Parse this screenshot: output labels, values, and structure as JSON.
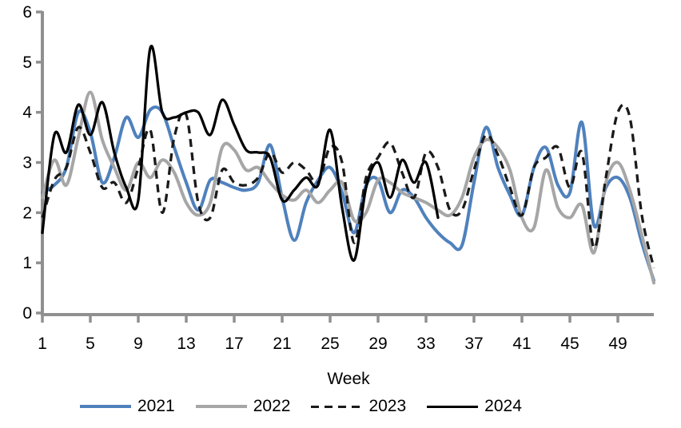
{
  "chart_data": {
    "type": "line",
    "title": "",
    "xlabel": "Week",
    "ylabel": "",
    "xlim": [
      1,
      52
    ],
    "ylim": [
      0,
      6
    ],
    "x_ticks": [
      1,
      5,
      9,
      13,
      17,
      21,
      25,
      29,
      33,
      37,
      41,
      45,
      49
    ],
    "y_ticks": [
      0,
      1,
      2,
      3,
      4,
      5,
      6
    ],
    "grid": false,
    "legend_position": "bottom",
    "axis_color": "#909090",
    "text_color": "#000000",
    "weeks": [
      1,
      2,
      3,
      4,
      5,
      6,
      7,
      8,
      9,
      10,
      11,
      12,
      13,
      14,
      15,
      16,
      17,
      18,
      19,
      20,
      21,
      22,
      23,
      24,
      25,
      26,
      27,
      28,
      29,
      30,
      31,
      32,
      33,
      34,
      35,
      36,
      37,
      38,
      39,
      40,
      41,
      42,
      43,
      44,
      45,
      46,
      47,
      48,
      49,
      50,
      51,
      52
    ],
    "series": [
      {
        "name": "2021",
        "color": "#4F81BD",
        "dash": "solid",
        "width": 4,
        "values": [
          2.4,
          2.55,
          2.9,
          4.0,
          3.6,
          2.6,
          3.1,
          3.9,
          3.5,
          4.05,
          4.0,
          3.3,
          2.6,
          2.05,
          2.65,
          2.6,
          2.5,
          2.45,
          2.6,
          3.35,
          2.3,
          1.45,
          2.2,
          2.65,
          2.9,
          2.4,
          1.6,
          2.55,
          2.65,
          2.0,
          2.45,
          2.3,
          1.9,
          1.6,
          1.4,
          1.35,
          2.6,
          3.7,
          2.9,
          2.35,
          1.95,
          2.9,
          3.3,
          2.55,
          2.4,
          3.8,
          1.75,
          2.5,
          2.7,
          2.3,
          1.4,
          0.65
        ]
      },
      {
        "name": "2022",
        "color": "#A6A6A6",
        "dash": "solid",
        "width": 4,
        "values": [
          2.3,
          3.05,
          2.55,
          3.5,
          4.4,
          3.45,
          2.9,
          2.45,
          3.0,
          2.7,
          3.05,
          2.8,
          2.2,
          1.95,
          2.2,
          3.3,
          3.25,
          2.85,
          2.9,
          2.6,
          2.35,
          2.25,
          2.45,
          2.2,
          2.45,
          2.6,
          1.85,
          2.0,
          2.65,
          2.6,
          2.4,
          2.3,
          2.2,
          2.05,
          1.95,
          2.3,
          3.1,
          3.45,
          3.3,
          2.85,
          1.9,
          1.7,
          2.85,
          2.1,
          1.9,
          2.15,
          1.2,
          2.6,
          3.0,
          2.45,
          1.55,
          0.6
        ]
      },
      {
        "name": "2023",
        "color": "#1a1a1a",
        "dash": "dashed",
        "width": 3.3,
        "values": [
          1.9,
          2.65,
          2.9,
          3.7,
          3.2,
          2.5,
          2.6,
          2.2,
          2.9,
          3.65,
          2.0,
          3.5,
          3.95,
          2.2,
          1.9,
          2.85,
          2.6,
          2.55,
          2.7,
          3.2,
          2.8,
          3.0,
          2.85,
          2.6,
          3.3,
          3.0,
          1.4,
          2.7,
          3.1,
          3.4,
          2.8,
          2.3,
          3.2,
          2.9,
          2.05,
          2.05,
          2.85,
          3.55,
          3.15,
          2.5,
          1.95,
          2.9,
          3.1,
          3.3,
          2.5,
          3.2,
          1.3,
          2.7,
          4.0,
          3.9,
          1.95,
          0.9
        ]
      },
      {
        "name": "2024",
        "color": "#000000",
        "dash": "solid",
        "width": 3.3,
        "values": [
          1.6,
          3.55,
          3.2,
          4.15,
          3.55,
          4.2,
          3.2,
          2.5,
          2.25,
          5.28,
          4.0,
          3.9,
          4.0,
          4.0,
          3.55,
          4.25,
          3.75,
          3.25,
          3.2,
          3.1,
          2.25,
          2.45,
          2.7,
          2.55,
          3.65,
          2.1,
          1.05,
          2.5,
          3.0,
          2.3,
          3.05,
          2.6,
          3.0,
          1.9,
          null,
          null,
          null,
          null,
          null,
          null,
          null,
          null,
          null,
          null,
          null,
          null,
          null,
          null,
          null,
          null,
          null,
          null
        ]
      }
    ]
  }
}
